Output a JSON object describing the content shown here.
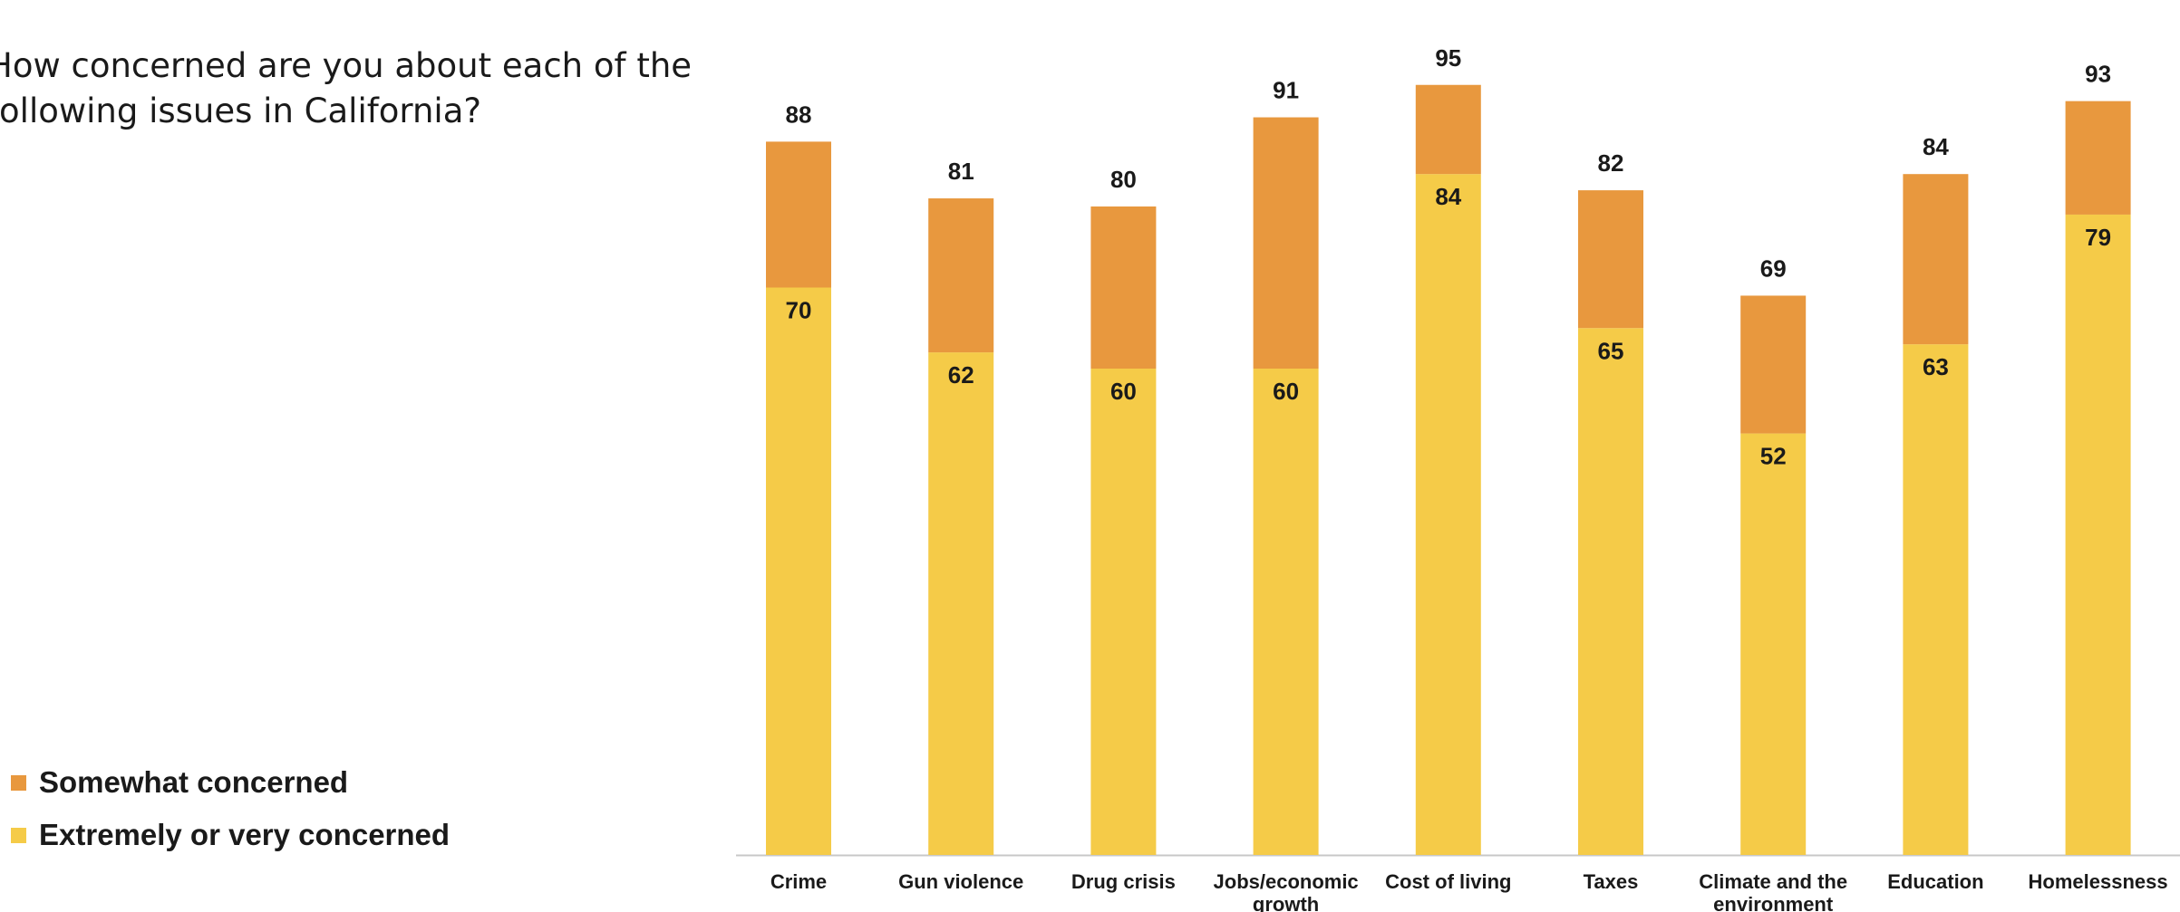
{
  "question": "How concerned are you about each of the\nfollowing issues in California?",
  "legend": [
    {
      "label": "Somewhat concerned",
      "color": "#E8983E"
    },
    {
      "label": "Extremely or very concerned",
      "color": "#F5CB48"
    }
  ],
  "chart_data": {
    "type": "bar",
    "stacked": true,
    "categories": [
      "Crime",
      "Gun violence",
      "Drug crisis",
      "Jobs/economic growth",
      "Cost of living",
      "Taxes",
      "Climate and the environment",
      "Education",
      "Homelessness"
    ],
    "series": [
      {
        "name": "Extremely or very concerned",
        "values": [
          70,
          62,
          60,
          60,
          84,
          65,
          52,
          63,
          79
        ],
        "color": "#F5CB48"
      },
      {
        "name": "Somewhat concerned",
        "values": [
          18,
          19,
          20,
          31,
          11,
          17,
          17,
          21,
          14
        ],
        "color": "#E8983E"
      }
    ],
    "totals": [
      88,
      81,
      80,
      91,
      95,
      82,
      69,
      84,
      93
    ],
    "ylim": [
      0,
      100
    ],
    "grid": false,
    "legend_position": "left"
  }
}
